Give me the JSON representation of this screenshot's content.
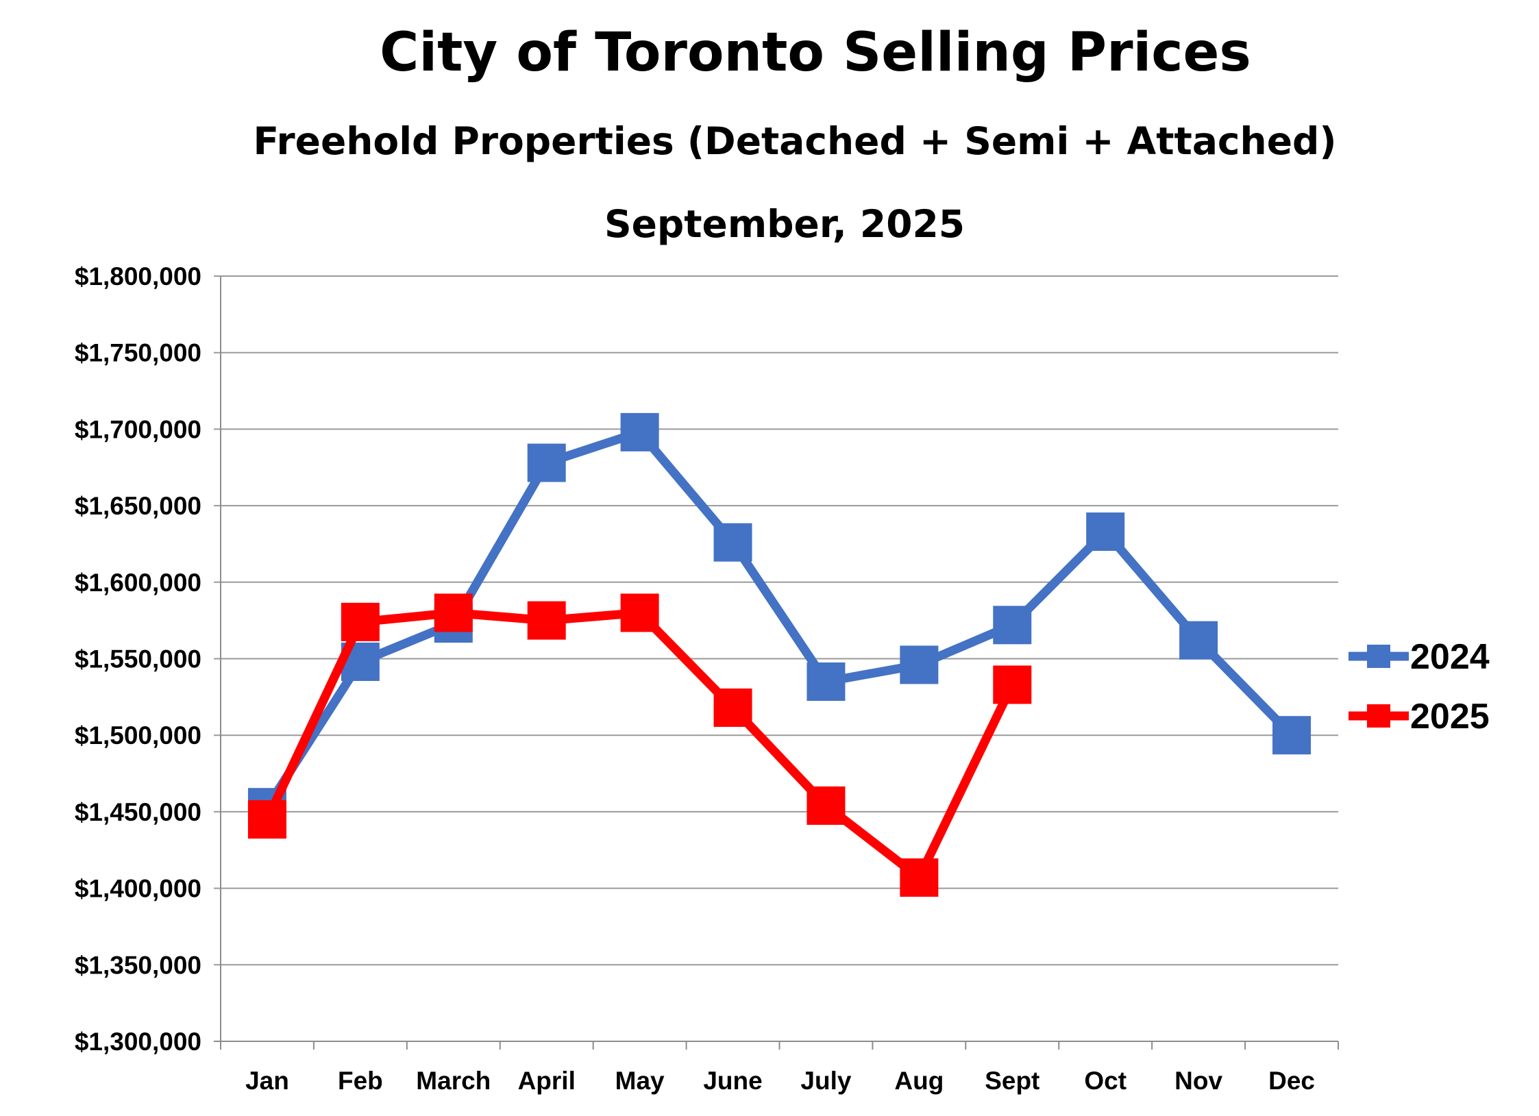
{
  "chart_data": {
    "type": "line",
    "title": "City of Toronto Selling Prices",
    "subtitle": "Freehold Properties (Detached + Semi + Attached)",
    "period": "September, 2025",
    "xlabel": "",
    "ylabel": "",
    "categories": [
      "Jan",
      "Feb",
      "March",
      "April",
      "May",
      "June",
      "July",
      "Aug",
      "Sept",
      "Oct",
      "Nov",
      "Dec"
    ],
    "ylim": [
      1300000,
      1800000
    ],
    "ytick_step": 50000,
    "yticks": [
      "$1,300,000",
      "$1,350,000",
      "$1,400,000",
      "$1,450,000",
      "$1,500,000",
      "$1,550,000",
      "$1,600,000",
      "$1,650,000",
      "$1,700,000",
      "$1,750,000",
      "$1,800,000"
    ],
    "grid": true,
    "legend_position": "right",
    "series": [
      {
        "name": "2024",
        "color": "#4472C4",
        "values": [
          1453000,
          1548000,
          1573000,
          1678000,
          1698000,
          1626000,
          1535000,
          1546000,
          1572000,
          1633000,
          1562000,
          1500000
        ]
      },
      {
        "name": "2025",
        "color": "#FF0000",
        "values": [
          1445000,
          1574000,
          1580000,
          1575000,
          1580000,
          1518000,
          1454000,
          1407000,
          1533000,
          null,
          null,
          null
        ]
      }
    ]
  }
}
